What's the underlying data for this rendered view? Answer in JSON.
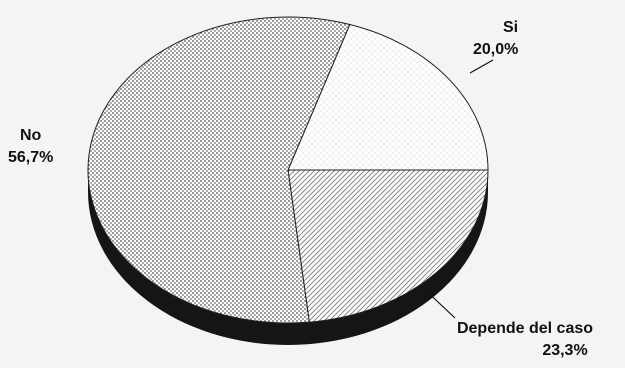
{
  "chart_data": {
    "type": "pie",
    "title": "",
    "slices": [
      {
        "label": "Si",
        "value": 20.0,
        "value_label": "20,0%",
        "pattern": "crosshatch-light"
      },
      {
        "label": "Depende del caso",
        "value": 23.3,
        "value_label": "23,3%",
        "pattern": "diagonal"
      },
      {
        "label": "No",
        "value": 56.7,
        "value_label": "56,7%",
        "pattern": "dots"
      }
    ],
    "legend": "none",
    "three_d": true
  }
}
